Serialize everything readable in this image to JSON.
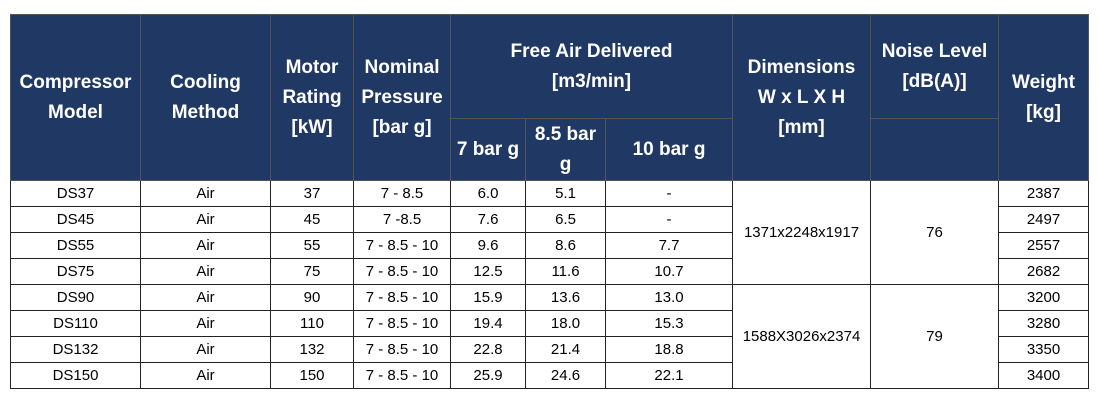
{
  "header": {
    "top": [
      "Compressor Model",
      "Cooling Method",
      "Motor Rating [kW]",
      "Nominal Pressure [bar g]",
      "Free Air Delivered [m3/min]",
      "Dimensions W x L X H [mm]",
      "Noise Level [dB(A)]",
      "Weight [kg]"
    ],
    "sub": [
      "7 bar g",
      "8.5 bar g",
      "10 bar g"
    ]
  },
  "rows": [
    {
      "model": "DS37",
      "cooling": "Air",
      "motor": "37",
      "pressure": "7 - 8.5",
      "fad": [
        "6.0",
        "5.1",
        "-"
      ],
      "weight": "2387"
    },
    {
      "model": "DS45",
      "cooling": "Air",
      "motor": "45",
      "pressure": "7 -8.5",
      "fad": [
        "7.6",
        "6.5",
        "-"
      ],
      "weight": "2497"
    },
    {
      "model": "DS55",
      "cooling": "Air",
      "motor": "55",
      "pressure": "7 - 8.5 - 10",
      "fad": [
        "9.6",
        "8.6",
        "7.7"
      ],
      "weight": "2557"
    },
    {
      "model": "DS75",
      "cooling": "Air",
      "motor": "75",
      "pressure": "7 - 8.5 - 10",
      "fad": [
        "12.5",
        "11.6",
        "10.7"
      ],
      "weight": "2682"
    },
    {
      "model": "DS90",
      "cooling": "Air",
      "motor": "90",
      "pressure": "7 - 8.5 - 10",
      "fad": [
        "15.9",
        "13.6",
        "13.0"
      ],
      "weight": "3200"
    },
    {
      "model": "DS110",
      "cooling": "Air",
      "motor": "110",
      "pressure": "7 - 8.5 - 10",
      "fad": [
        "19.4",
        "18.0",
        "15.3"
      ],
      "weight": "3280"
    },
    {
      "model": "DS132",
      "cooling": "Air",
      "motor": "132",
      "pressure": "7 - 8.5 - 10",
      "fad": [
        "22.8",
        "21.4",
        "18.8"
      ],
      "weight": "3350"
    },
    {
      "model": "DS150",
      "cooling": "Air",
      "motor": "150",
      "pressure": "7 - 8.5 - 10",
      "fad": [
        "25.9",
        "24.6",
        "22.1"
      ],
      "weight": "3400"
    }
  ],
  "groups": [
    {
      "dimensions": "1371x2248x1917",
      "noise": "76"
    },
    {
      "dimensions": "1588X3026x2374",
      "noise": "79"
    }
  ]
}
